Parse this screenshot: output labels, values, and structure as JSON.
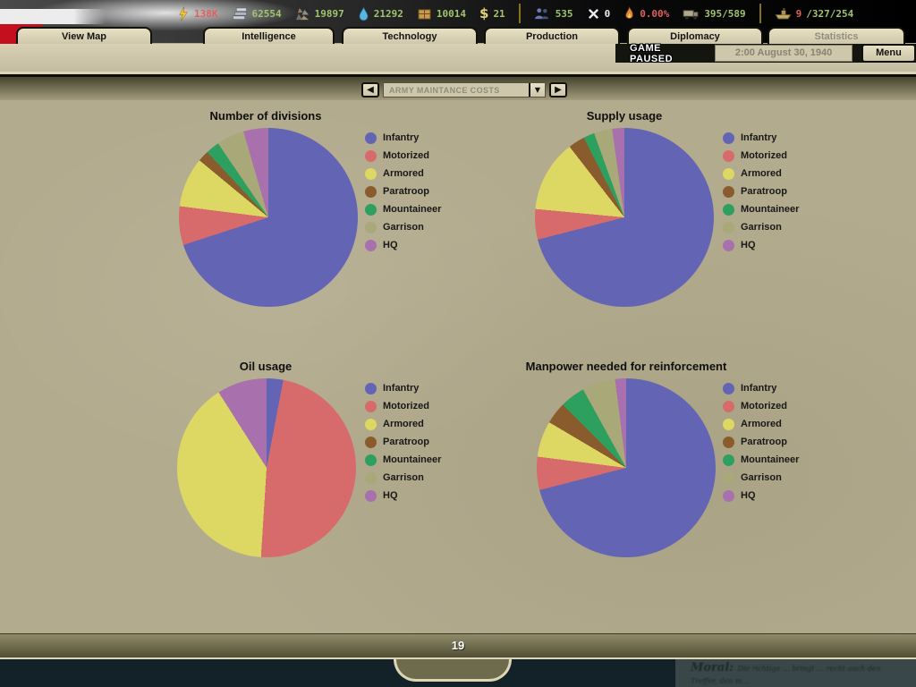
{
  "topbar": {
    "resources": [
      {
        "name": "energy",
        "icon": "energy-icon",
        "parts": [
          {
            "text": "138K",
            "color": "#e06060"
          }
        ]
      },
      {
        "name": "metal",
        "icon": "metal-icon",
        "parts": [
          {
            "text": "62554",
            "color": "#a2c46e"
          }
        ]
      },
      {
        "name": "rare-materials",
        "icon": "rare-materials-icon",
        "parts": [
          {
            "text": "19897",
            "color": "#a2c46e"
          }
        ]
      },
      {
        "name": "oil",
        "icon": "oil-icon",
        "parts": [
          {
            "text": "21292",
            "color": "#a2c46e"
          }
        ]
      },
      {
        "name": "supplies",
        "icon": "supplies-icon",
        "parts": [
          {
            "text": "10014",
            "color": "#a2c46e"
          }
        ]
      },
      {
        "name": "money",
        "icon": "money-icon",
        "parts": [
          {
            "text": "21",
            "color": "#a2c46e"
          }
        ]
      },
      {
        "name": "divider"
      },
      {
        "name": "manpower",
        "icon": "manpower-icon",
        "parts": [
          {
            "text": "535",
            "color": "#a2c46e"
          }
        ]
      },
      {
        "name": "escorts",
        "icon": "escorts-icon",
        "parts": [
          {
            "text": "0",
            "color": "#eceff2"
          }
        ]
      },
      {
        "name": "dissent",
        "icon": "dissent-icon",
        "parts": [
          {
            "text": "0.00%",
            "color": "#e06060"
          }
        ]
      },
      {
        "name": "transport-capacity",
        "icon": "transport-capacity-icon",
        "parts": [
          {
            "text": "395/589",
            "color": "#a2c46e"
          }
        ]
      },
      {
        "name": "divider"
      },
      {
        "name": "convoys",
        "icon": "convoys-icon",
        "parts": [
          {
            "text": "9",
            "color": "#e06060"
          },
          {
            "text": "/327/254",
            "color": "#a2c46e"
          }
        ]
      }
    ]
  },
  "tabs": [
    {
      "label": "View Map",
      "active": false
    },
    {
      "label": "Intelligence",
      "active": false
    },
    {
      "label": "Technology",
      "active": false
    },
    {
      "label": "Production",
      "active": false
    },
    {
      "label": "Diplomacy",
      "active": false
    },
    {
      "label": "Statistics",
      "active": true
    }
  ],
  "statusline": {
    "paused_label": "GAME PAUSED",
    "date": "2:00 August 30, 1940",
    "menu_label": "Menu"
  },
  "selector": {
    "value": "ARMY MAINTANCE COSTS",
    "prev_icon": "left-arrow-icon",
    "next_icon": "right-arrow-icon",
    "dropdown_icon": "chevron-down-icon"
  },
  "chart_data": [
    {
      "type": "pie",
      "title": "Number of divisions",
      "categories": [
        "Infantry",
        "Motorized",
        "Armored",
        "Paratroop",
        "Mountaineer",
        "Garrison",
        "HQ"
      ],
      "values": [
        70,
        7,
        9,
        2,
        2.5,
        5,
        4.5
      ],
      "colors": [
        "#6464b4",
        "#d76b6b",
        "#ddd763",
        "#8a5c2d",
        "#2da05f",
        "#a8a878",
        "#a871ad"
      ],
      "legend_position": "right"
    },
    {
      "type": "pie",
      "title": "Supply usage",
      "categories": [
        "Infantry",
        "Motorized",
        "Armored",
        "Paratroop",
        "Mountaineer",
        "Garrison",
        "HQ"
      ],
      "values": [
        71,
        5.5,
        13,
        3,
        2,
        3.3,
        2.2
      ],
      "colors": [
        "#6464b4",
        "#d76b6b",
        "#ddd763",
        "#8a5c2d",
        "#2da05f",
        "#a8a878",
        "#a871ad"
      ],
      "legend_position": "right"
    },
    {
      "type": "pie",
      "title": "Oil usage",
      "categories": [
        "Infantry",
        "Motorized",
        "Armored",
        "Paratroop",
        "Mountaineer",
        "Garrison",
        "HQ"
      ],
      "values": [
        3,
        48,
        40,
        0,
        0,
        0,
        9
      ],
      "colors": [
        "#6464b4",
        "#d76b6b",
        "#ddd763",
        "#8a5c2d",
        "#2da05f",
        "#a8a878",
        "#a871ad"
      ],
      "legend_position": "right"
    },
    {
      "type": "pie",
      "title": "Manpower needed for reinforcement",
      "categories": [
        "Infantry",
        "Motorized",
        "Armored",
        "Paratroop",
        "Mountaineer",
        "Garrison",
        "HQ"
      ],
      "values": [
        71,
        6,
        6.5,
        4,
        4.5,
        6,
        2
      ],
      "colors": [
        "#6464b4",
        "#d76b6b",
        "#ddd763",
        "#8a5c2d",
        "#2da05f",
        "#a8a878",
        "#a871ad"
      ],
      "legend_position": "right"
    }
  ],
  "footer": {
    "page": "19",
    "map_note_title": "Moral:",
    "map_note_text": "Die richtige … bringt … recht auch den Treffer, den m…"
  }
}
